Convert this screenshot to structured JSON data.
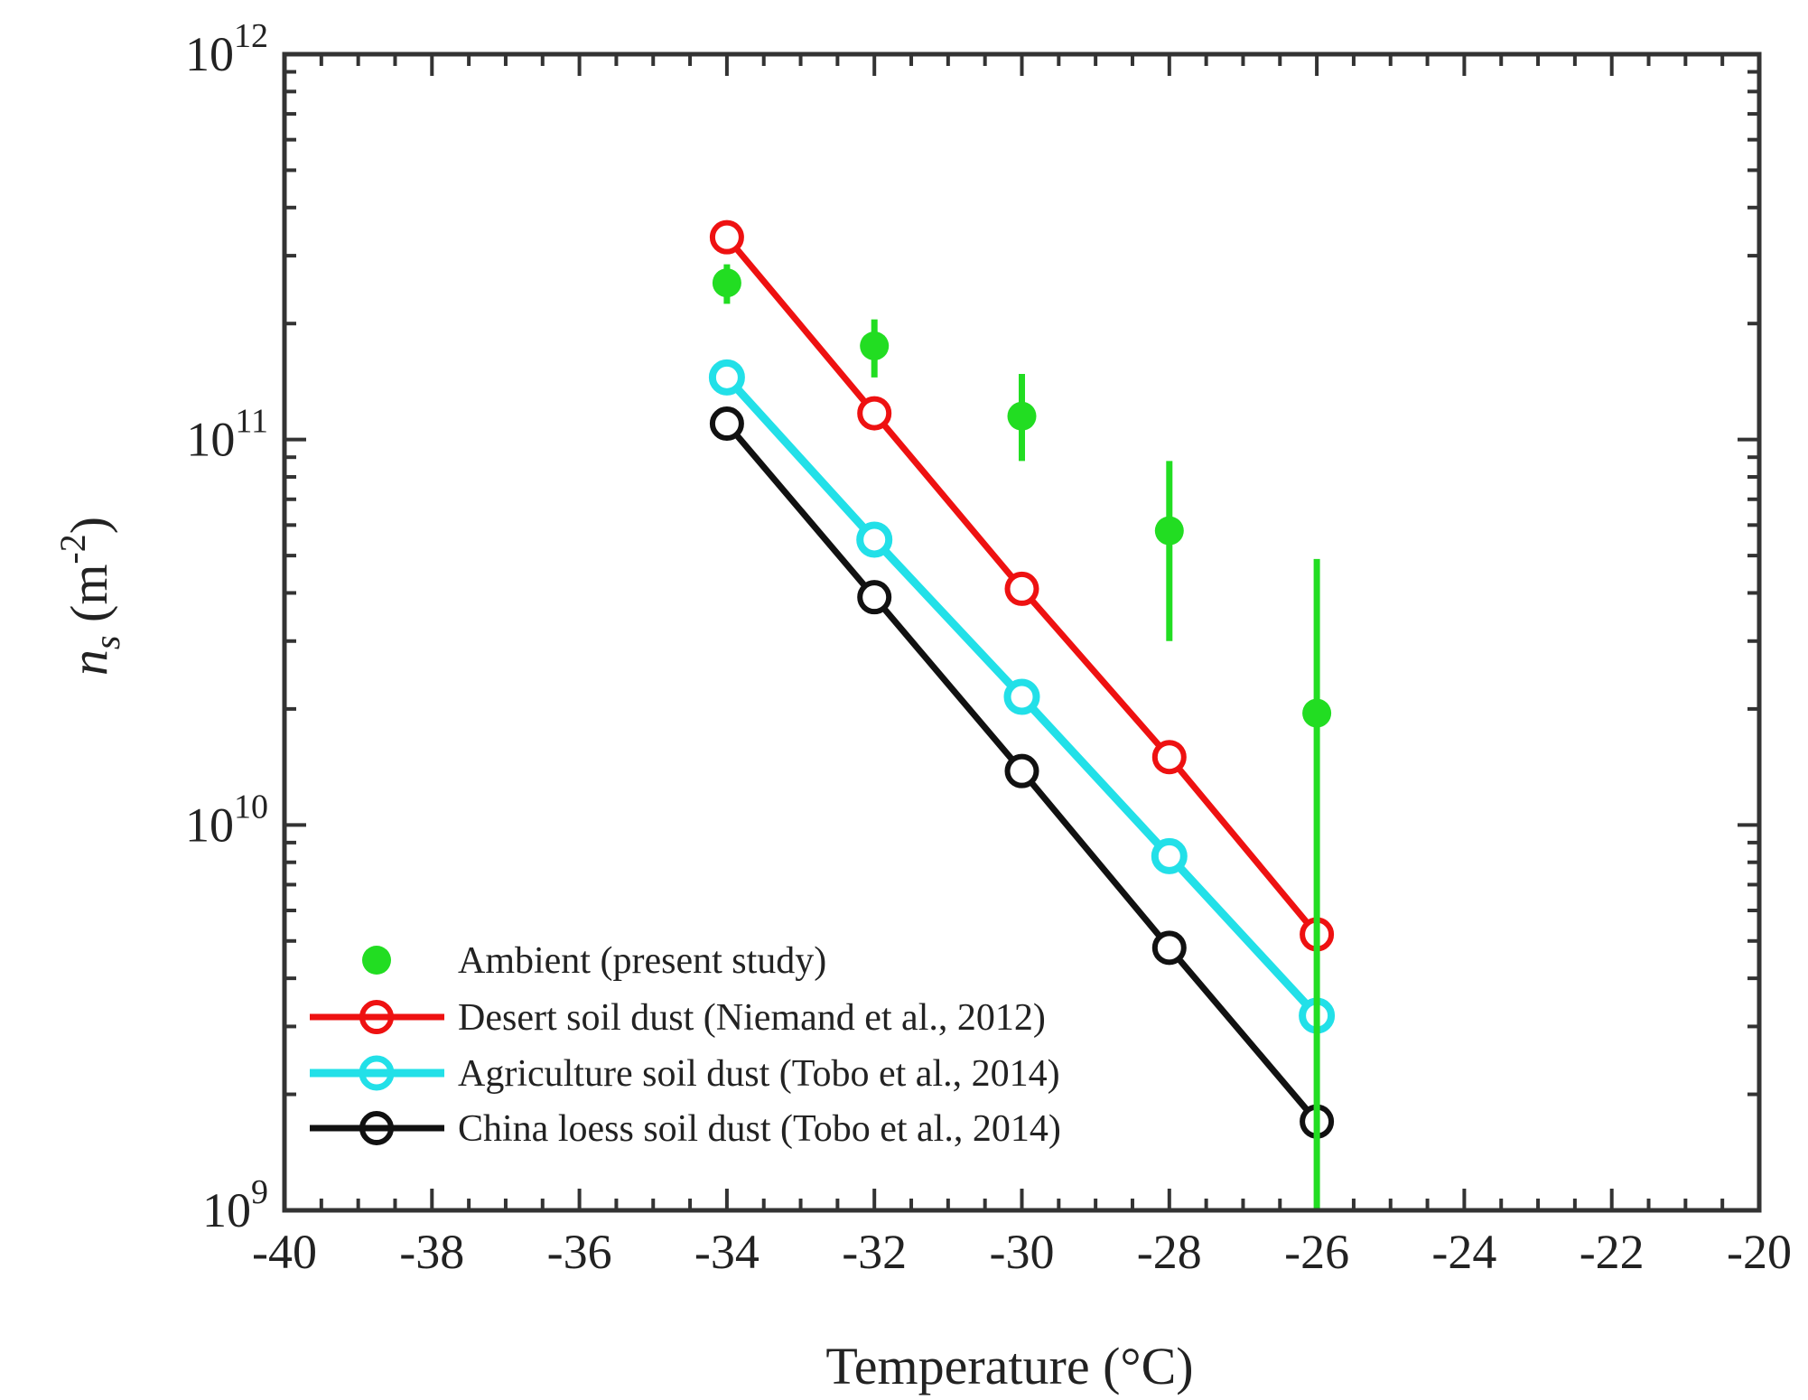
{
  "chart_data": {
    "type": "line",
    "title": "",
    "xlabel": "Temperature (°C)",
    "ylabel": {
      "main": "n",
      "sub": "s",
      "unit_open": " (m",
      "unit_sup": "-2",
      "unit_close": ")"
    },
    "xscale": "linear",
    "yscale": "log",
    "xlim": [
      -40,
      -20
    ],
    "ylim": [
      1000000000.0,
      1000000000000.0
    ],
    "xticks": [
      -40,
      -38,
      -36,
      -34,
      -32,
      -30,
      -28,
      -26,
      -24,
      -22,
      -20
    ],
    "xtick_labels": [
      "-40",
      "-38",
      "-36",
      "-34",
      "-32",
      "-30",
      "-28",
      "-26",
      "-24",
      "-22",
      "-20"
    ],
    "yticks": [
      {
        "value": 1000000000.0,
        "base": "10",
        "exp": "9"
      },
      {
        "value": 10000000000.0,
        "base": "10",
        "exp": "10"
      },
      {
        "value": 100000000000.0,
        "base": "10",
        "exp": "11"
      },
      {
        "value": 1000000000000.0,
        "base": "10",
        "exp": "12"
      }
    ],
    "series": [
      {
        "name": "Ambient (present study)",
        "kind": "errorbar",
        "color": "#22dd22",
        "x": [
          -34,
          -32,
          -30,
          -28,
          -26
        ],
        "y": [
          255000000000.0,
          175000000000.0,
          115000000000.0,
          58000000000.0,
          19500000000.0
        ],
        "ylow": [
          225000000000.0,
          145000000000.0,
          88000000000.0,
          30000000000.0,
          1000000000.0
        ],
        "yhigh": [
          285000000000.0,
          205000000000.0,
          148000000000.0,
          88000000000.0,
          49000000000.0
        ]
      },
      {
        "name": "Desert soil dust (Niemand et al., 2012)",
        "kind": "line-marker",
        "color": "#ee1111",
        "x": [
          -34,
          -32,
          -30,
          -28,
          -26
        ],
        "y": [
          335000000000.0,
          117000000000.0,
          41000000000.0,
          15000000000.0,
          5200000000.0
        ]
      },
      {
        "name": "Agriculture soil dust (Tobo et al., 2014)",
        "kind": "line-marker",
        "color": "#22e0e8",
        "x": [
          -34,
          -32,
          -30,
          -28,
          -26
        ],
        "y": [
          145000000000.0,
          55000000000.0,
          21500000000.0,
          8300000000.0,
          3200000000.0
        ]
      },
      {
        "name": "China loess soil dust (Tobo et al., 2014)",
        "kind": "line-marker",
        "color": "#111111",
        "x": [
          -34,
          -32,
          -30,
          -28,
          -26
        ],
        "y": [
          110000000000.0,
          39000000000.0,
          13800000000.0,
          4800000000.0,
          1700000000.0
        ]
      }
    ],
    "legend_position": "bottom-left"
  }
}
